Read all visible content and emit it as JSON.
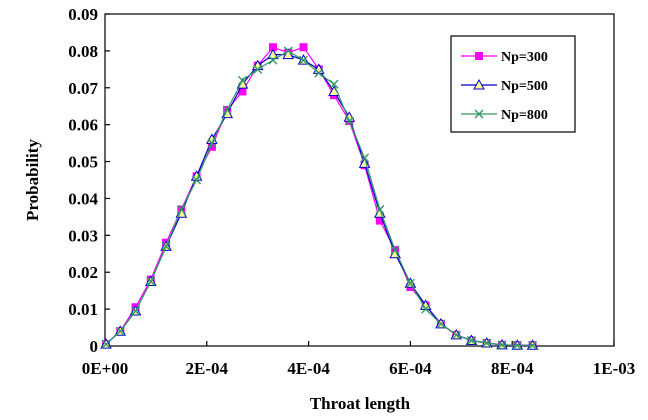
{
  "chart_data": {
    "type": "line",
    "title": "",
    "xlabel": "Throat length",
    "ylabel": "Probability",
    "xlim": [
      0,
      0.001
    ],
    "ylim": [
      0,
      0.09
    ],
    "x_ticks": [
      0,
      0.0002,
      0.0004,
      0.0006,
      0.0008,
      0.001
    ],
    "x_tick_labels": [
      "0E+00",
      "2E-04",
      "4E-04",
      "6E-04",
      "8E-04",
      "1E-03"
    ],
    "y_ticks": [
      0,
      0.01,
      0.02,
      0.03,
      0.04,
      0.05,
      0.06,
      0.07,
      0.08,
      0.09
    ],
    "y_tick_labels": [
      "0",
      "0.01",
      "0.02",
      "0.03",
      "0.04",
      "0.05",
      "0.06",
      "0.07",
      "0.08",
      "0.09"
    ],
    "grid": false,
    "legend": "top-right",
    "x": [
      2e-06,
      3e-05,
      6e-05,
      9e-05,
      0.00012,
      0.00015,
      0.00018,
      0.00021,
      0.00024,
      0.00027,
      0.0003,
      0.00033,
      0.00036,
      0.00039,
      0.00042,
      0.00045,
      0.00048,
      0.00051,
      0.00054,
      0.00057,
      0.0006,
      0.00063,
      0.00066,
      0.00069,
      0.00072,
      0.00075,
      0.00078,
      0.00081,
      0.00084
    ],
    "series": [
      {
        "name": "Np=300",
        "color": "#ff00ff",
        "marker": "square",
        "values": [
          0.0005,
          0.004,
          0.0105,
          0.018,
          0.028,
          0.037,
          0.046,
          0.054,
          0.064,
          0.069,
          0.076,
          0.081,
          0.0795,
          0.081,
          0.075,
          0.068,
          0.061,
          0.049,
          0.034,
          0.026,
          0.016,
          0.011,
          0.006,
          0.003,
          0.0015,
          0.0008,
          0.0003,
          0.0002,
          0.0002
        ]
      },
      {
        "name": "Np=500",
        "color": "#0000cc",
        "marker": "triangle",
        "values": [
          0.0005,
          0.004,
          0.0095,
          0.0175,
          0.027,
          0.036,
          0.046,
          0.056,
          0.063,
          0.071,
          0.076,
          0.079,
          0.079,
          0.0775,
          0.075,
          0.069,
          0.062,
          0.0495,
          0.036,
          0.025,
          0.017,
          0.011,
          0.006,
          0.003,
          0.0015,
          0.0008,
          0.0003,
          0.0002,
          0.0002
        ]
      },
      {
        "name": "Np=800",
        "color": "#339966",
        "marker": "x",
        "values": [
          0.0005,
          0.004,
          0.0095,
          0.0175,
          0.027,
          0.037,
          0.045,
          0.055,
          0.064,
          0.072,
          0.075,
          0.0775,
          0.08,
          0.0775,
          0.074,
          0.071,
          0.061,
          0.051,
          0.037,
          0.026,
          0.017,
          0.01,
          0.006,
          0.003,
          0.0015,
          0.0008,
          0.0003,
          0.0002,
          0.0002
        ]
      }
    ]
  }
}
